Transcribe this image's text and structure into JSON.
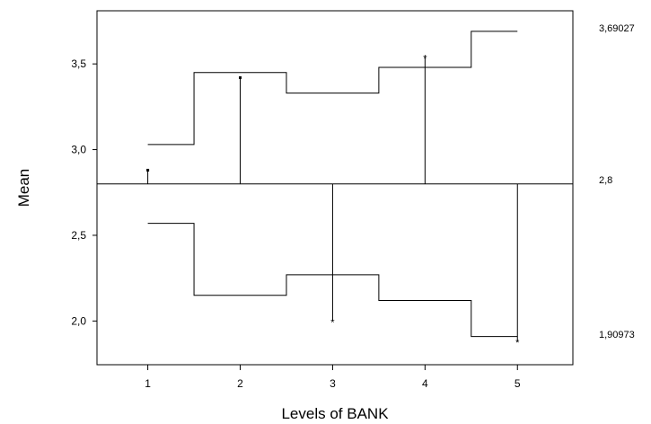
{
  "chart_data": {
    "type": "line",
    "title": "",
    "xlabel": "Levels of BANK",
    "ylabel": "Mean",
    "x_ticks": [
      "1",
      "2",
      "3",
      "4",
      "5"
    ],
    "y_ticks": [
      "2,0",
      "2,5",
      "3,0",
      "3,5"
    ],
    "xlim": [
      0.45,
      5.6
    ],
    "ylim": [
      1.745,
      3.81
    ],
    "center_line": {
      "value": 2.8,
      "label": "2,8"
    },
    "upper_decision_limit": {
      "label": "3,69027",
      "values": [
        3.03,
        3.45,
        3.33,
        3.48,
        3.69027
      ]
    },
    "lower_decision_limit": {
      "label": "1,90973",
      "values": [
        2.57,
        2.15,
        2.27,
        2.12,
        1.90973
      ]
    },
    "series": [
      {
        "categories": [
          1,
          2,
          3,
          4,
          5
        ],
        "values": [
          2.88,
          3.42,
          2.0,
          3.54,
          1.88
        ]
      }
    ],
    "grid": false
  }
}
